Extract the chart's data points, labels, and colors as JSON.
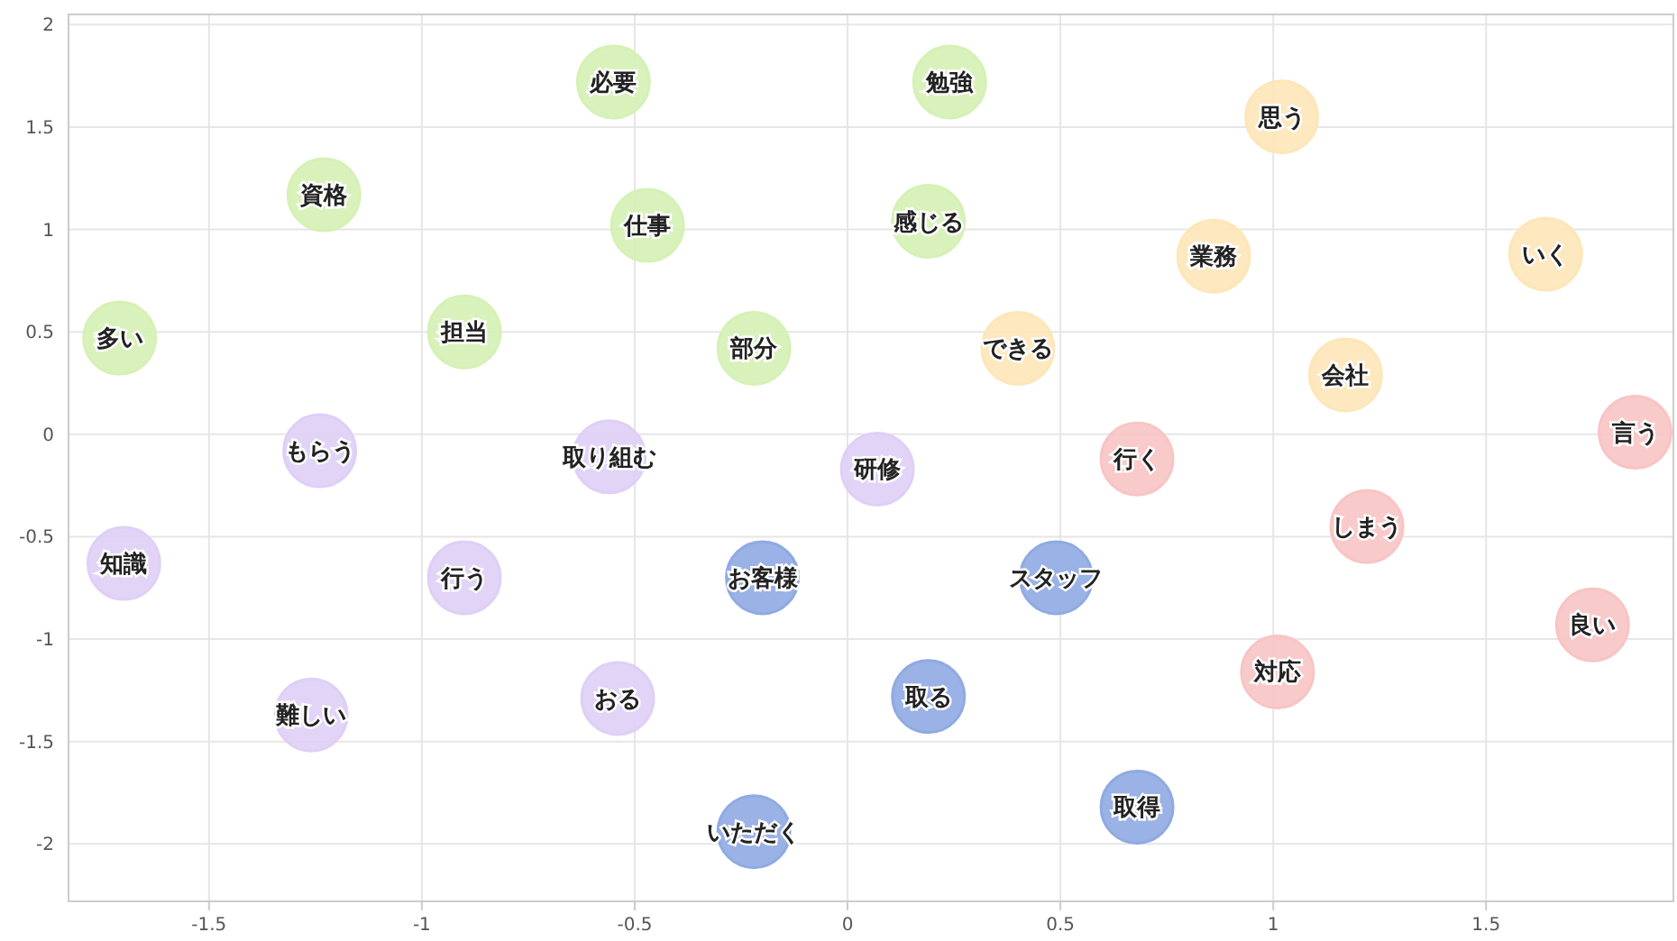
{
  "chart_data": {
    "type": "scatter",
    "marker": "circle",
    "grid": true,
    "xlim": [
      -1.83,
      1.94
    ],
    "ylim": [
      -2.28,
      2.05
    ],
    "xticks": [
      -1.5,
      -1,
      -0.5,
      0,
      0.5,
      1,
      1.5
    ],
    "yticks": [
      -2,
      -1.5,
      -1,
      -0.5,
      0,
      0.5,
      1,
      1.5,
      2
    ],
    "series": [
      {
        "color": "#d5f1b5",
        "x": [
          -0.55,
          0.24,
          -1.23,
          -0.47,
          0.19,
          -1.71,
          -0.9,
          -0.22
        ],
        "values": [
          1.72,
          1.72,
          1.17,
          1.02,
          1.04,
          0.47,
          0.5,
          0.42
        ]
      },
      {
        "color": "#fde6b8",
        "x": [
          1.02,
          0.86,
          1.64,
          0.4,
          1.17
        ],
        "values": [
          1.55,
          0.87,
          0.88,
          0.42,
          0.29
        ]
      },
      {
        "color": "#f8c4c4",
        "x": [
          1.85,
          0.68,
          1.22,
          1.75,
          1.01
        ],
        "values": [
          0.01,
          -0.12,
          -0.45,
          -0.93,
          -1.16
        ]
      },
      {
        "color": "#dfcff6",
        "x": [
          -1.24,
          -0.56,
          0.07,
          -1.7,
          -0.9,
          -0.54,
          -1.26
        ],
        "values": [
          -0.08,
          -0.11,
          -0.17,
          -0.63,
          -0.7,
          -1.29,
          -1.37
        ]
      },
      {
        "color": "#8faae2",
        "x": [
          -0.2,
          0.49,
          0.19,
          0.68,
          -0.22
        ],
        "values": [
          -0.7,
          -0.7,
          -1.28,
          -1.82,
          -1.94
        ]
      }
    ],
    "annotations": [
      {
        "text": "必要",
        "x": -0.55,
        "y": 1.72
      },
      {
        "text": "勉強",
        "x": 0.24,
        "y": 1.72
      },
      {
        "text": "資格",
        "x": -1.23,
        "y": 1.17
      },
      {
        "text": "仕事",
        "x": -0.47,
        "y": 1.02
      },
      {
        "text": "感じる",
        "x": 0.19,
        "y": 1.04
      },
      {
        "text": "多い",
        "x": -1.71,
        "y": 0.47
      },
      {
        "text": "担当",
        "x": -0.9,
        "y": 0.5
      },
      {
        "text": "部分",
        "x": -0.22,
        "y": 0.42
      },
      {
        "text": "思う",
        "x": 1.02,
        "y": 1.55
      },
      {
        "text": "業務",
        "x": 0.86,
        "y": 0.87
      },
      {
        "text": "いく",
        "x": 1.64,
        "y": 0.88
      },
      {
        "text": "できる",
        "x": 0.4,
        "y": 0.42
      },
      {
        "text": "会社",
        "x": 1.17,
        "y": 0.29
      },
      {
        "text": "言う",
        "x": 1.85,
        "y": 0.01
      },
      {
        "text": "行く",
        "x": 0.68,
        "y": -0.12
      },
      {
        "text": "しまう",
        "x": 1.22,
        "y": -0.45
      },
      {
        "text": "良い",
        "x": 1.75,
        "y": -0.93
      },
      {
        "text": "対応",
        "x": 1.01,
        "y": -1.16
      },
      {
        "text": "もらう",
        "x": -1.24,
        "y": -0.08
      },
      {
        "text": "取り組む",
        "x": -0.56,
        "y": -0.11
      },
      {
        "text": "研修",
        "x": 0.07,
        "y": -0.17
      },
      {
        "text": "知識",
        "x": -1.7,
        "y": -0.63
      },
      {
        "text": "行う",
        "x": -0.9,
        "y": -0.7
      },
      {
        "text": "おる",
        "x": -0.54,
        "y": -1.29
      },
      {
        "text": "難しい",
        "x": -1.26,
        "y": -1.37
      },
      {
        "text": "お客様",
        "x": -0.2,
        "y": -0.7
      },
      {
        "text": "スタッフ",
        "x": 0.49,
        "y": -0.7
      },
      {
        "text": "取る",
        "x": 0.19,
        "y": -1.28
      },
      {
        "text": "取得",
        "x": 0.68,
        "y": -1.82
      },
      {
        "text": "いただく",
        "x": -0.22,
        "y": -1.94
      }
    ]
  }
}
